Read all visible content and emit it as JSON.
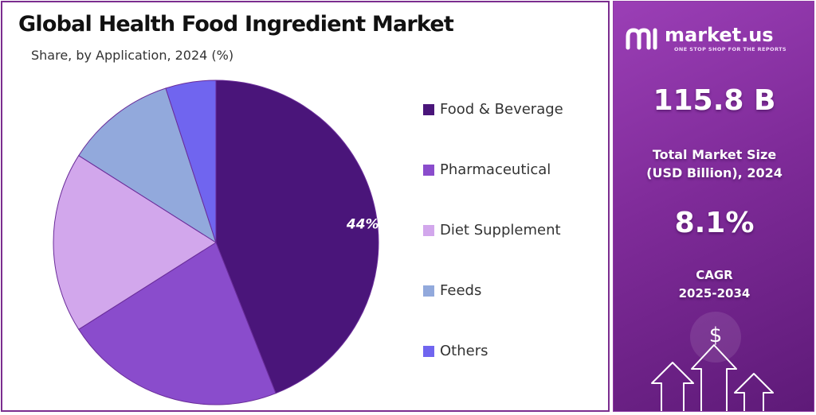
{
  "title": "Global Health Food Ingredient Market",
  "subtitle": "Share, by Application, 2024 (%)",
  "colors": {
    "food_beverage": "#4a157a",
    "pharmaceutical": "#8a4ccc",
    "diet_supplement": "#d2a7ec",
    "feeds": "#92a9dc",
    "others": "#7065ef",
    "panel": "#8b36a8",
    "border": "#7b2d8f"
  },
  "chart_data": {
    "type": "pie",
    "title": "Global Health Food Ingredient Market",
    "subtitle": "Share, by Application, 2024 (%)",
    "categories": [
      "Food & Beverage",
      "Pharmaceutical",
      "Diet Supplement",
      "Feeds",
      "Others"
    ],
    "values": [
      44,
      22,
      18,
      11,
      5
    ],
    "data_labels": [
      "44%",
      "",
      "",
      "",
      ""
    ],
    "legend_position": "right"
  },
  "brand": {
    "name": "market.us",
    "tagline": "ONE STOP SHOP FOR THE REPORTS"
  },
  "stats": {
    "market_size_value": "115.8 B",
    "market_size_label_1": "Total Market Size",
    "market_size_label_2": "(USD Billion), 2024",
    "cagr_value": "8.1%",
    "cagr_label_1": "CAGR",
    "cagr_label_2": "2025-2034"
  },
  "decor_icon": "dollar-arrows-icon"
}
